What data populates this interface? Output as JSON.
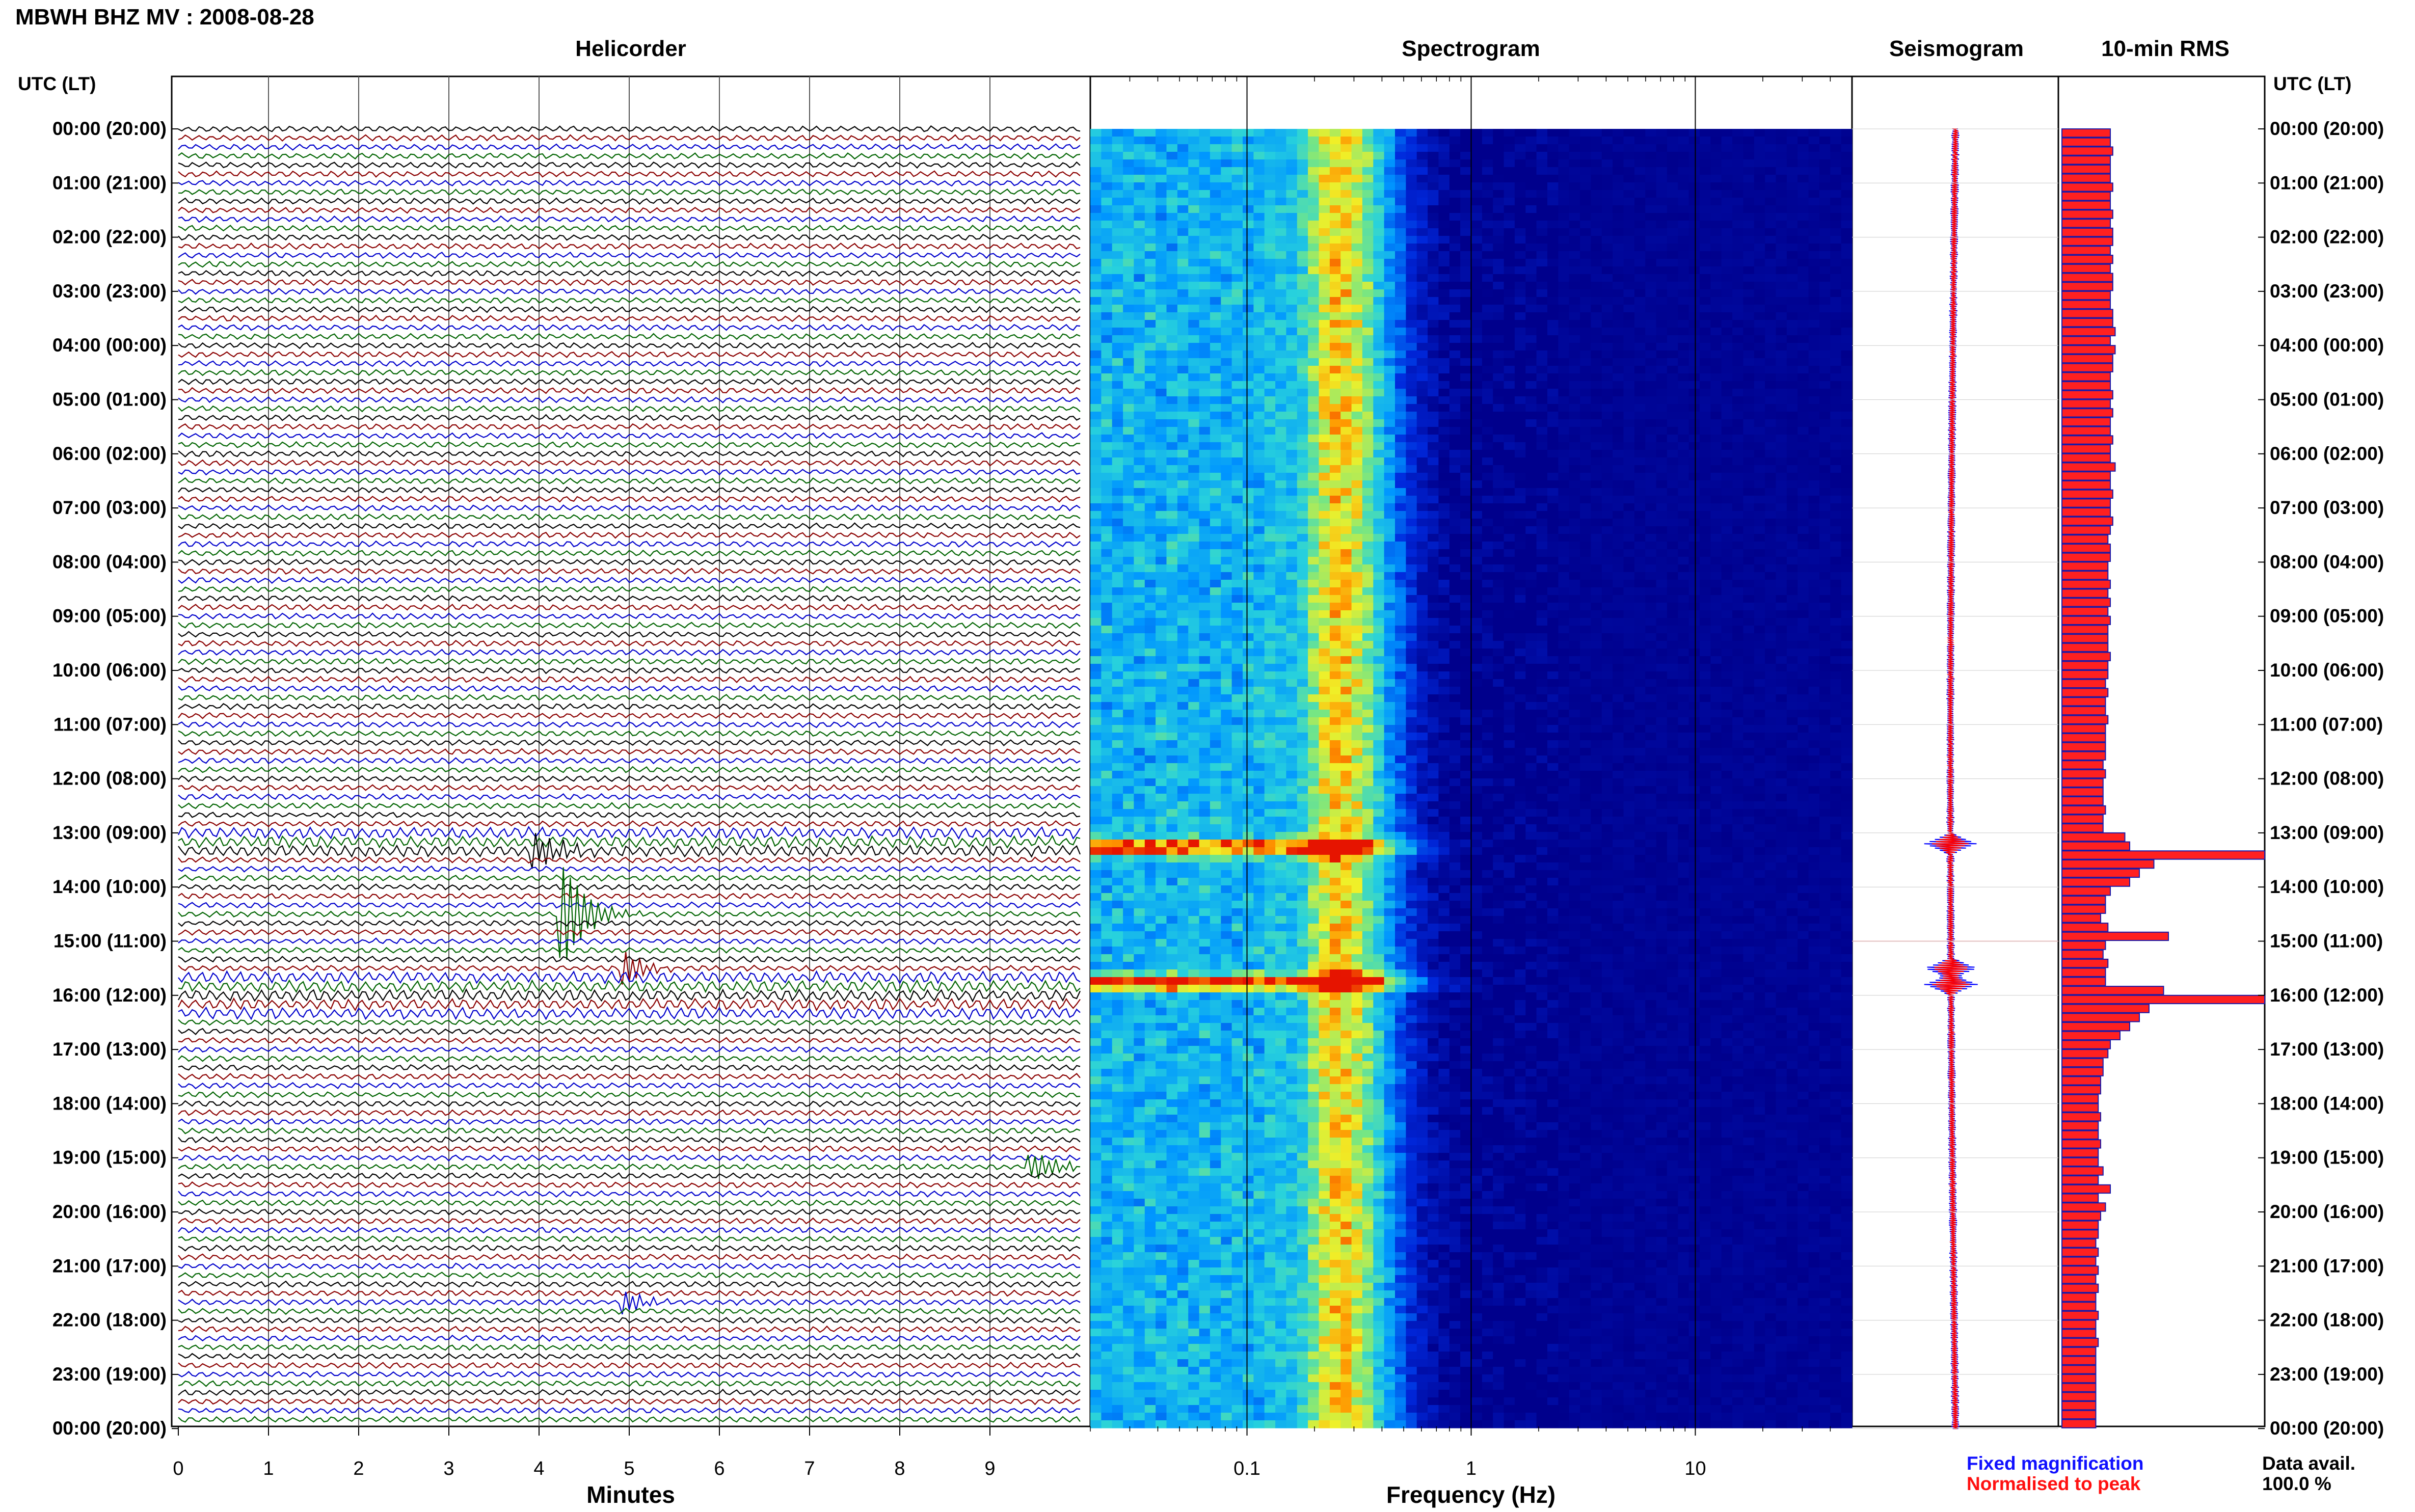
{
  "header": {
    "title": "MBWH BHZ MV : 2008-08-28"
  },
  "panels": {
    "helicorder": "Helicorder",
    "spectrogram": "Spectrogram",
    "seismogram": "Seismogram",
    "rms": "10-min RMS"
  },
  "axis_labels": {
    "time_left": "UTC (LT)",
    "time_right": "UTC (LT)",
    "minutes": "Minutes",
    "frequency": "Frequency (Hz)"
  },
  "legend": {
    "fixed": "Fixed magnification",
    "normalised": "Normalised to peak"
  },
  "data_avail": {
    "label": "Data avail.",
    "value": "100.0 %"
  },
  "colors": {
    "helicorder_lines": [
      "#000000",
      "#8b0000",
      "#0000cc",
      "#006400"
    ],
    "seismogram_fixed": "#0000ff",
    "seismogram_normalised": "#ff0000",
    "rms_fill": "#ff2020",
    "rms_edge": "#1a1aa8"
  },
  "chart_data": [
    {
      "type": "line",
      "name": "helicorder",
      "title": "Helicorder",
      "xlabel": "Minutes",
      "ylabel": "UTC (LT)",
      "xlim": [
        0,
        10
      ],
      "x_ticks": [
        "0",
        "1",
        "2",
        "3",
        "4",
        "5",
        "6",
        "7",
        "8",
        "9"
      ],
      "y_ticks": [
        "00:00 (20:00)",
        "01:00 (21:00)",
        "02:00 (22:00)",
        "03:00 (23:00)",
        "04:00 (00:00)",
        "05:00 (01:00)",
        "06:00 (02:00)",
        "07:00 (03:00)",
        "08:00 (04:00)",
        "09:00 (05:00)",
        "10:00 (06:00)",
        "11:00 (07:00)",
        "12:00 (08:00)",
        "13:00 (09:00)",
        "14:00 (10:00)",
        "15:00 (11:00)",
        "16:00 (12:00)",
        "17:00 (13:00)",
        "18:00 (14:00)",
        "19:00 (15:00)",
        "20:00 (16:00)",
        "21:00 (17:00)",
        "22:00 (18:00)",
        "23:00 (19:00)",
        "00:00 (20:00)"
      ],
      "traces_per_hour": 6,
      "events": [
        {
          "hour": 14.5,
          "minute": 4.3,
          "amplitude": 3.0
        },
        {
          "hour": 13.33,
          "minute": 4.0,
          "amplitude": 1.0
        },
        {
          "hour": 19.17,
          "minute": 9.5,
          "amplitude": 1.0
        },
        {
          "hour": 15.5,
          "minute": 5.0,
          "amplitude": 1.2
        },
        {
          "hour": 21.67,
          "minute": 5.0,
          "amplitude": 0.8
        }
      ]
    },
    {
      "type": "heatmap",
      "name": "spectrogram",
      "title": "Spectrogram",
      "xlabel": "Frequency (Hz)",
      "x_scale": "log",
      "xlim": [
        0.02,
        50
      ],
      "x_ticks": [
        "0.1",
        "1",
        "10"
      ],
      "dominant_band_hz": [
        0.2,
        0.35
      ],
      "high_energy_hours": [
        13.2,
        15.7
      ]
    },
    {
      "type": "line",
      "name": "seismogram",
      "title": "Seismogram",
      "series": [
        {
          "name": "Fixed magnification"
        },
        {
          "name": "Normalised to peak"
        }
      ],
      "peak_hours": [
        13.2,
        15.5,
        15.8
      ]
    },
    {
      "type": "bar",
      "name": "rms",
      "title": "10-min RMS",
      "orientation": "horizontal",
      "bins": 144,
      "values": [
        1.0,
        1.0,
        1.05,
        1.0,
        1.0,
        1.0,
        1.05,
        1.0,
        1.0,
        1.05,
        1.0,
        1.05,
        1.05,
        1.0,
        1.05,
        1.0,
        1.05,
        1.05,
        1.0,
        1.0,
        1.05,
        1.05,
        1.1,
        1.0,
        1.1,
        1.05,
        1.05,
        1.0,
        1.0,
        1.05,
        1.0,
        1.05,
        1.0,
        1.0,
        1.05,
        1.0,
        1.0,
        1.1,
        1.0,
        1.0,
        1.05,
        1.0,
        1.0,
        1.05,
        1.0,
        0.95,
        1.0,
        1.0,
        0.95,
        0.95,
        1.0,
        0.95,
        1.0,
        0.95,
        1.0,
        0.95,
        0.95,
        0.95,
        1.0,
        0.95,
        0.95,
        0.9,
        0.95,
        0.9,
        0.9,
        0.95,
        0.9,
        0.9,
        0.9,
        0.9,
        0.85,
        0.9,
        0.85,
        0.85,
        0.85,
        0.9,
        0.85,
        0.85,
        1.3,
        1.4,
        4.2,
        1.9,
        1.6,
        1.4,
        1.0,
        0.9,
        0.9,
        0.8,
        0.95,
        2.2,
        0.9,
        0.85,
        0.95,
        0.9,
        0.9,
        2.1,
        4.5,
        1.8,
        1.6,
        1.4,
        1.2,
        1.0,
        0.95,
        0.85,
        0.85,
        0.8,
        0.8,
        0.75,
        0.75,
        0.8,
        0.75,
        0.75,
        0.8,
        0.75,
        0.75,
        0.85,
        0.75,
        1.0,
        0.75,
        0.9,
        0.8,
        0.75,
        0.75,
        0.7,
        0.75,
        0.7,
        0.75,
        0.7,
        0.75,
        0.7,
        0.7,
        0.75,
        0.7,
        0.7,
        0.75,
        0.7,
        0.7,
        0.7,
        0.7,
        0.7,
        0.7,
        0.7,
        0.7,
        0.7
      ],
      "peak_hours": [
        13.33,
        14.83,
        16.0
      ]
    }
  ]
}
